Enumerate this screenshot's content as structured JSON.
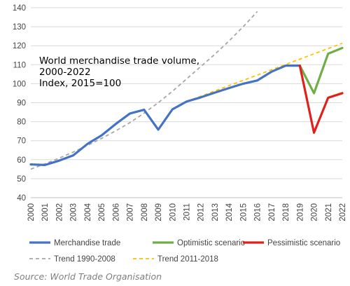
{
  "chart_data": {
    "type": "line",
    "title_lines": [
      "World merchandise trade volume,",
      "2000-2022",
      "Index, 2015=100"
    ],
    "ylim": [
      40,
      140
    ],
    "yticks": [
      40,
      50,
      60,
      70,
      80,
      90,
      100,
      110,
      120,
      130,
      140
    ],
    "xlim": [
      2000,
      2022
    ],
    "xticks": [
      "2000",
      "2001",
      "2002",
      "2003",
      "2004",
      "2005",
      "2006",
      "2007",
      "2008",
      "2009",
      "2010",
      "2011",
      "2012",
      "2013",
      "2014",
      "2015",
      "2016",
      "2017",
      "2018",
      "2019",
      "2020",
      "2021",
      "2022"
    ],
    "grid": {
      "horizontal": true,
      "vertical": false
    },
    "legend_position": "bottom",
    "series": [
      {
        "name": "Merchandise trade",
        "color": "#4472c4",
        "style": "solid",
        "points": [
          [
            2000,
            57.5
          ],
          [
            2001,
            57.2
          ],
          [
            2002,
            59.5
          ],
          [
            2003,
            62.3
          ],
          [
            2004,
            68.3
          ],
          [
            2005,
            72.8
          ],
          [
            2006,
            78.8
          ],
          [
            2007,
            84.3
          ],
          [
            2008,
            86.3
          ],
          [
            2009,
            75.8
          ],
          [
            2010,
            86.5
          ],
          [
            2011,
            90.6
          ],
          [
            2012,
            92.8
          ],
          [
            2013,
            95.3
          ],
          [
            2014,
            97.7
          ],
          [
            2015,
            100.0
          ],
          [
            2016,
            101.7
          ],
          [
            2017,
            106.3
          ],
          [
            2018,
            109.5
          ],
          [
            2019,
            109.5
          ]
        ]
      },
      {
        "name": "Optimistic scenario",
        "color": "#70ad47",
        "style": "solid",
        "points": [
          [
            2019,
            109.5
          ],
          [
            2020,
            95.0
          ],
          [
            2021,
            115.8
          ],
          [
            2022,
            118.8
          ]
        ]
      },
      {
        "name": "Pessimistic scenario",
        "color": "#e0201b",
        "style": "solid",
        "points": [
          [
            2019,
            109.5
          ],
          [
            2020,
            74.2
          ],
          [
            2021,
            92.6
          ],
          [
            2022,
            95.0
          ]
        ]
      },
      {
        "name": "Trend 1990-2008",
        "color": "#a6a6a6",
        "style": "dashed",
        "points": [
          [
            2000,
            55.0
          ],
          [
            2001,
            57.8
          ],
          [
            2002,
            60.8
          ],
          [
            2003,
            64.0
          ],
          [
            2004,
            67.5
          ],
          [
            2005,
            71.2
          ],
          [
            2006,
            75.2
          ],
          [
            2007,
            79.5
          ],
          [
            2008,
            84.5
          ],
          [
            2009,
            90.0
          ],
          [
            2010,
            96.0
          ],
          [
            2011,
            102.5
          ],
          [
            2012,
            109.0
          ],
          [
            2013,
            115.5
          ],
          [
            2014,
            122.5
          ],
          [
            2015,
            130.0
          ],
          [
            2016,
            138.0
          ]
        ]
      },
      {
        "name": "Trend 2011-2018",
        "color": "#ffc000",
        "style": "dashed",
        "points": [
          [
            2011,
            90.6
          ],
          [
            2022,
            121.3
          ]
        ]
      }
    ],
    "legend_rows": [
      [
        "Merchandise trade",
        "Optimistic scenario",
        "Pessimistic scenario"
      ],
      [
        "Trend 1990-2008",
        "Trend 2011-2018"
      ]
    ]
  },
  "source_note": "Source: World Trade Organisation"
}
